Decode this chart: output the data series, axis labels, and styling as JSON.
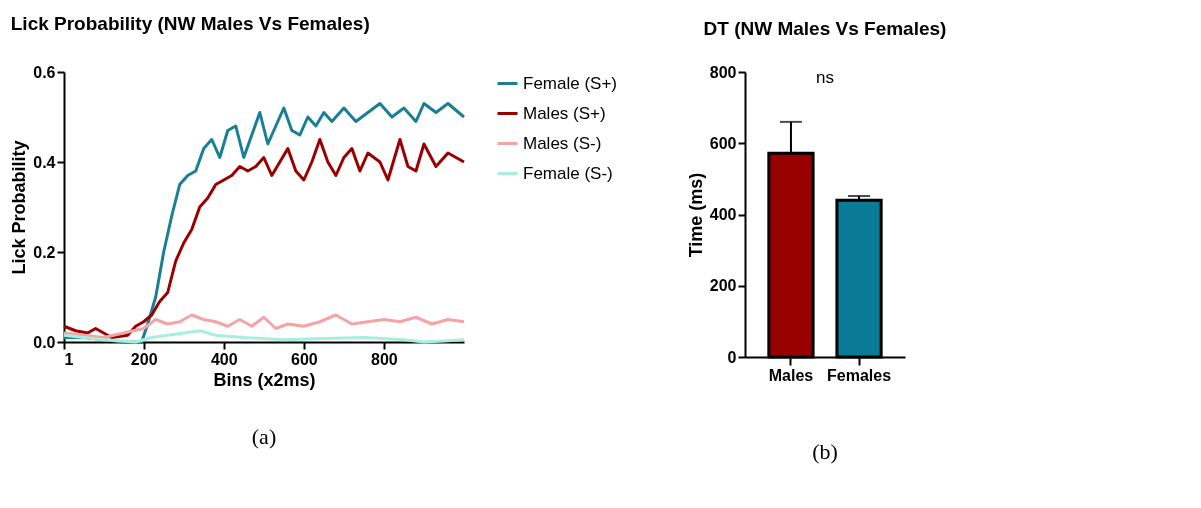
{
  "chart_data": [
    {
      "type": "line",
      "title": "Lick Probability (NW Males Vs Females)",
      "xlabel": "Bins (x2ms)",
      "ylabel": "Lick Probability",
      "xlim": [
        1,
        1000
      ],
      "xticks": [
        1,
        200,
        400,
        600,
        800
      ],
      "ylim": [
        0,
        0.6
      ],
      "yticks": [
        {
          "value": 0,
          "label": "0.0"
        },
        0.2,
        0.4,
        0.6
      ],
      "legend": "right",
      "grid": false,
      "annotations": [
        "(a)"
      ],
      "series": [
        {
          "name": "Female (S+)",
          "color": "#1a7f95",
          "x": [
            1,
            50,
            100,
            150,
            195,
            210,
            230,
            250,
            270,
            290,
            310,
            330,
            350,
            370,
            390,
            410,
            430,
            450,
            470,
            490,
            510,
            530,
            550,
            570,
            590,
            610,
            630,
            650,
            670,
            700,
            730,
            760,
            790,
            820,
            850,
            880,
            900,
            930,
            960,
            1000
          ],
          "values": [
            0.01,
            0.01,
            0.005,
            0.0,
            0.0,
            0.04,
            0.1,
            0.2,
            0.28,
            0.35,
            0.37,
            0.38,
            0.43,
            0.45,
            0.41,
            0.47,
            0.48,
            0.41,
            0.46,
            0.51,
            0.44,
            0.48,
            0.52,
            0.47,
            0.46,
            0.5,
            0.48,
            0.51,
            0.49,
            0.52,
            0.49,
            0.51,
            0.53,
            0.5,
            0.52,
            0.49,
            0.53,
            0.51,
            0.53,
            0.5
          ]
        },
        {
          "name": "Males (S+)",
          "color": "#990000",
          "x": [
            1,
            30,
            60,
            80,
            100,
            120,
            160,
            180,
            200,
            220,
            240,
            260,
            280,
            300,
            320,
            340,
            360,
            380,
            400,
            420,
            440,
            460,
            480,
            500,
            520,
            540,
            560,
            580,
            600,
            620,
            640,
            660,
            680,
            700,
            720,
            740,
            760,
            790,
            810,
            840,
            860,
            880,
            900,
            930,
            960,
            1000
          ],
          "values": [
            0.035,
            0.025,
            0.02,
            0.03,
            0.02,
            0.01,
            0.015,
            0.035,
            0.045,
            0.06,
            0.09,
            0.11,
            0.18,
            0.22,
            0.25,
            0.3,
            0.32,
            0.35,
            0.36,
            0.37,
            0.39,
            0.38,
            0.39,
            0.41,
            0.37,
            0.4,
            0.43,
            0.38,
            0.36,
            0.4,
            0.45,
            0.4,
            0.37,
            0.41,
            0.43,
            0.38,
            0.42,
            0.4,
            0.36,
            0.45,
            0.39,
            0.38,
            0.44,
            0.39,
            0.42,
            0.4
          ]
        },
        {
          "name": "Males (S-)",
          "color": "#f4a4a4",
          "x": [
            1,
            100,
            150,
            200,
            230,
            260,
            290,
            320,
            350,
            380,
            410,
            440,
            470,
            500,
            530,
            560,
            600,
            640,
            680,
            720,
            760,
            800,
            840,
            880,
            920,
            960,
            1000
          ],
          "values": [
            0.02,
            0.01,
            0.02,
            0.03,
            0.05,
            0.04,
            0.045,
            0.06,
            0.05,
            0.045,
            0.035,
            0.05,
            0.035,
            0.055,
            0.03,
            0.04,
            0.035,
            0.045,
            0.06,
            0.04,
            0.045,
            0.05,
            0.045,
            0.055,
            0.04,
            0.05,
            0.045
          ]
        },
        {
          "name": "Female (S-)",
          "color": "#a8eedd",
          "x": [
            1,
            100,
            180,
            220,
            260,
            300,
            340,
            380,
            450,
            550,
            650,
            750,
            850,
            900,
            950,
            1000
          ],
          "values": [
            0.015,
            0.005,
            0.0,
            0.01,
            0.015,
            0.02,
            0.025,
            0.015,
            0.01,
            0.005,
            0.008,
            0.01,
            0.005,
            0.0,
            0.002,
            0.005
          ]
        }
      ]
    },
    {
      "type": "bar",
      "title": "DT (NW Males Vs Females)",
      "ylabel": "Time (ms)",
      "categories": [
        "Males",
        "Females"
      ],
      "values": [
        572,
        440
      ],
      "colors": [
        "#990000",
        "#0a7b96"
      ],
      "errors": [
        [
          572,
          660
        ],
        [
          440,
          452
        ]
      ],
      "ylim": [
        0,
        800
      ],
      "yticks": [
        0,
        200,
        400,
        600,
        800
      ],
      "grid": false,
      "legend": false,
      "annotations": [
        "ns",
        "(b)"
      ]
    }
  ]
}
